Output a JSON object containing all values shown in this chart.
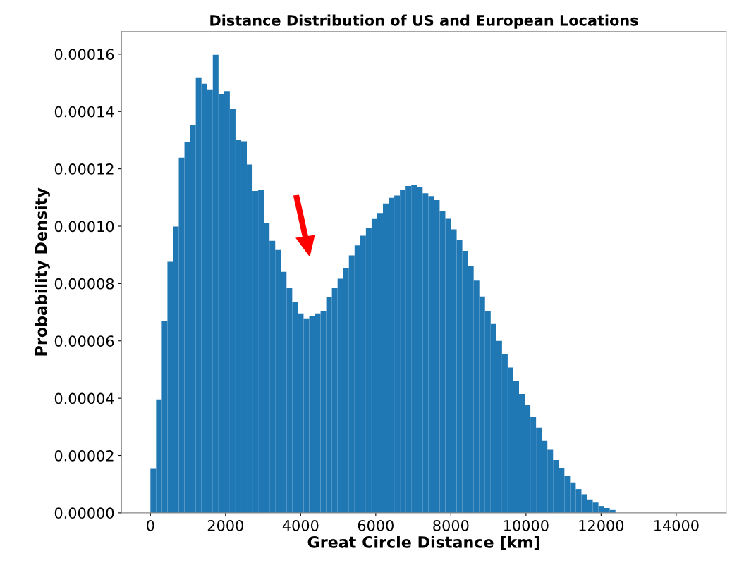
{
  "chart_data": {
    "type": "histogram",
    "title": "Distance Distribution of US and European Locations",
    "xlabel": "Great Circle Distance [km]",
    "ylabel": "Probability Density",
    "color": "#1f77b4",
    "bins": [
      0,
      151,
      302,
      453,
      604,
      755,
      906,
      1057,
      1208,
      1359,
      1510,
      1661,
      1812,
      1963,
      2114,
      2265,
      2416,
      2567,
      2718,
      2869,
      3020,
      3171,
      3322,
      3473,
      3624,
      3775,
      3926,
      4077,
      4228,
      4379,
      4530,
      4681,
      4832,
      4983,
      5134,
      5285,
      5436,
      5587,
      5738,
      5889,
      6040,
      6191,
      6342,
      6493,
      6644,
      6795,
      6946,
      7097,
      7248,
      7399,
      7550,
      7701,
      7852,
      8003,
      8154,
      8305,
      8456,
      8607,
      8758,
      8909,
      9060,
      9211,
      9362,
      9513,
      9664,
      9815,
      9966,
      10117,
      10268,
      10419,
      10570,
      10721,
      10872,
      11023,
      11174,
      11325,
      11476,
      11627,
      11778,
      11929,
      12080,
      12231,
      12382,
      12533,
      12684
    ],
    "values": [
      1.56e-05,
      3.96e-05,
      6.7e-05,
      8.76e-05,
      9.99e-05,
      0.0001239,
      0.0001293,
      0.0001354,
      0.0001519,
      0.0001497,
      0.0001475,
      0.0001598,
      0.0001462,
      0.0001471,
      0.0001409,
      0.00013,
      0.0001296,
      0.0001215,
      0.0001123,
      0.0001126,
      0.000101,
      9.49e-05,
      9.17e-05,
      8.41e-05,
      7.84e-05,
      7.35e-05,
      6.96e-05,
      6.76e-05,
      6.88e-05,
      6.96e-05,
      7.05e-05,
      7.52e-05,
      7.84e-05,
      8.17e-05,
      8.55e-05,
      8.98e-05,
      9.33e-05,
      9.67e-05,
      9.93e-05,
      0.0001025,
      0.0001046,
      0.0001079,
      0.0001099,
      0.0001107,
      0.0001126,
      0.000114,
      0.0001145,
      0.0001136,
      0.0001115,
      0.0001105,
      0.0001091,
      0.0001054,
      0.0001026,
      9.89e-05,
      9.51e-05,
      9.14e-05,
      8.6e-05,
      8.1e-05,
      7.55e-05,
      7.04e-05,
      6.59e-05,
      6e-05,
      5.54e-05,
      5.07e-05,
      4.62e-05,
      4.15e-05,
      3.76e-05,
      3.34e-05,
      2.98e-05,
      2.51e-05,
      2.22e-05,
      1.84e-05,
      1.57e-05,
      1.29e-05,
      1.06e-05,
      8.3e-06,
      6.5e-06,
      4.7e-06,
      3.6e-06,
      2.4e-06,
      1.7e-06,
      1e-06,
      null,
      null
    ],
    "xlim": [
      -770,
      15330
    ],
    "xticks": [
      0,
      2000,
      4000,
      6000,
      8000,
      10000,
      12000,
      14000
    ],
    "ylim": [
      0,
      0.0001679
    ],
    "yticks": [
      {
        "value": 0,
        "label": "0.00000"
      },
      {
        "value": 2e-05,
        "label": "0.00002"
      },
      {
        "value": 4e-05,
        "label": "0.00004"
      },
      {
        "value": 6e-05,
        "label": "0.00006"
      },
      {
        "value": 8e-05,
        "label": "0.00008"
      },
      {
        "value": 0.0001,
        "label": "0.00010"
      },
      {
        "value": 0.00012,
        "label": "0.00012"
      },
      {
        "value": 0.00014,
        "label": "0.00014"
      },
      {
        "value": 0.00016,
        "label": "0.00016"
      }
    ]
  }
}
